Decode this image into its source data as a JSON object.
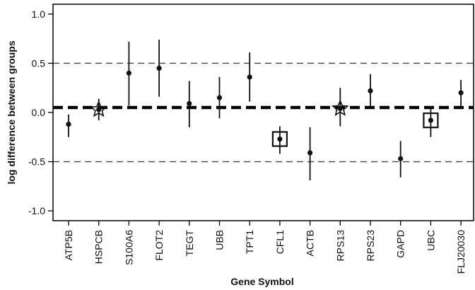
{
  "chart_data": {
    "type": "scatter",
    "title": "",
    "xlabel": "Gene Symbol",
    "ylabel": "log difference between groups",
    "ylim": [
      -1.1,
      1.1
    ],
    "yticks": [
      -1.0,
      -0.5,
      0.0,
      0.5,
      1.0
    ],
    "ytick_labels": [
      "-1.0",
      "-0.5",
      "0.0",
      "0.5",
      "1.0"
    ],
    "reference_lines": {
      "thick_dashed": 0.05,
      "thin_dashed": [
        0.5,
        -0.5
      ]
    },
    "categories": [
      "ATP5B",
      "HSPCB",
      "S100A6",
      "FLOT2",
      "TEGT",
      "UBB",
      "TPT1",
      "CFL1",
      "ACTB",
      "RPS13",
      "RPS23",
      "GAPD",
      "UBC",
      "FLJ20030"
    ],
    "values": [
      -0.12,
      0.03,
      0.4,
      0.45,
      0.09,
      0.15,
      0.36,
      -0.27,
      -0.41,
      0.04,
      0.22,
      -0.47,
      -0.08,
      0.2
    ],
    "lower": [
      -0.25,
      -0.08,
      0.07,
      0.16,
      -0.15,
      -0.06,
      0.11,
      -0.42,
      -0.69,
      -0.14,
      0.05,
      -0.66,
      -0.25,
      0.05
    ],
    "upper": [
      -0.02,
      0.14,
      0.72,
      0.74,
      0.32,
      0.36,
      0.61,
      -0.14,
      -0.15,
      0.25,
      0.39,
      -0.29,
      0.06,
      0.33
    ],
    "markers": {
      "star": [
        "HSPCB",
        "RPS13"
      ],
      "square": [
        "CFL1",
        "UBC"
      ]
    }
  }
}
